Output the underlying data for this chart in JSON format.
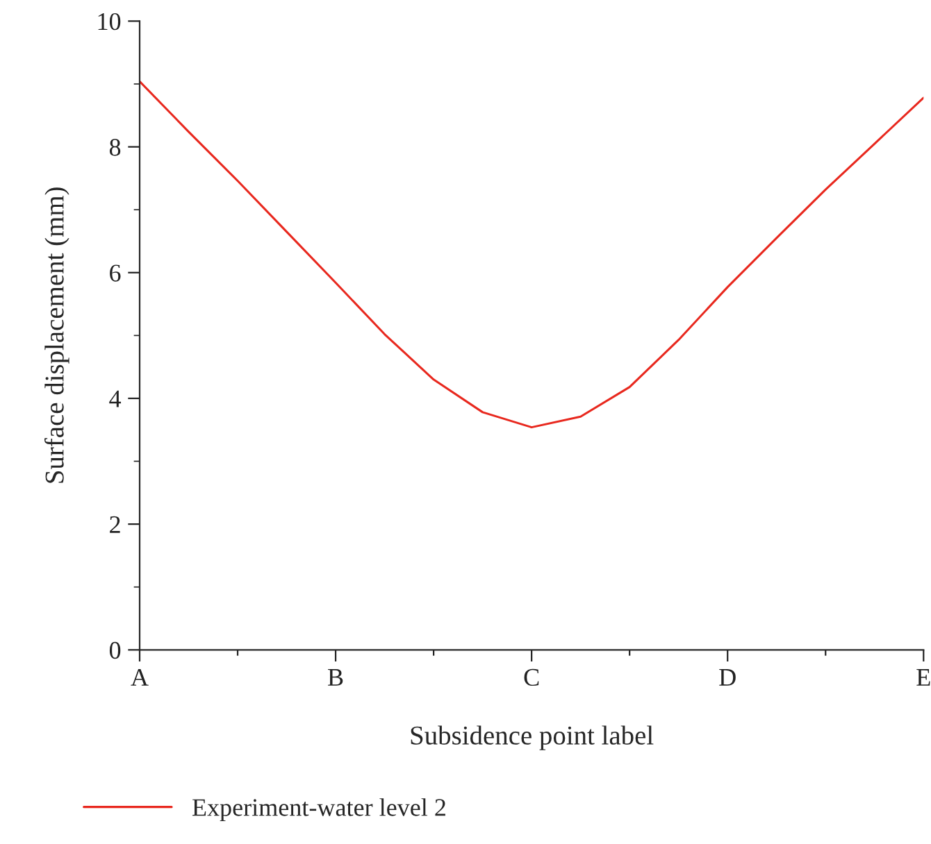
{
  "chart_data": {
    "type": "line",
    "xlabel": "Subsidence point label",
    "ylabel": "Surface displacement (mm)",
    "categories": [
      "A",
      null,
      null,
      null,
      "B",
      null,
      null,
      null,
      "C",
      null,
      null,
      null,
      "D",
      null,
      null,
      null,
      "E"
    ],
    "ylim": [
      0,
      10
    ],
    "yticks": [
      0,
      {
        "value": 1,
        "label": null
      },
      2,
      {
        "value": 3,
        "label": null
      },
      4,
      {
        "value": 5,
        "label": null
      },
      6,
      {
        "value": 7,
        "label": null
      },
      8,
      {
        "value": 9,
        "label": null
      },
      10
    ],
    "series": [
      {
        "name": "Experiment-water level 2",
        "color": "#e8281e",
        "values": [
          9.04,
          8.24,
          7.46,
          6.65,
          5.84,
          5.02,
          4.3,
          3.78,
          3.54,
          3.71,
          4.18,
          4.93,
          5.77,
          6.55,
          7.32,
          8.05,
          8.78
        ]
      }
    ],
    "legend": "bottom left",
    "grid": false,
    "marker": "none",
    "line_style": "solid"
  }
}
